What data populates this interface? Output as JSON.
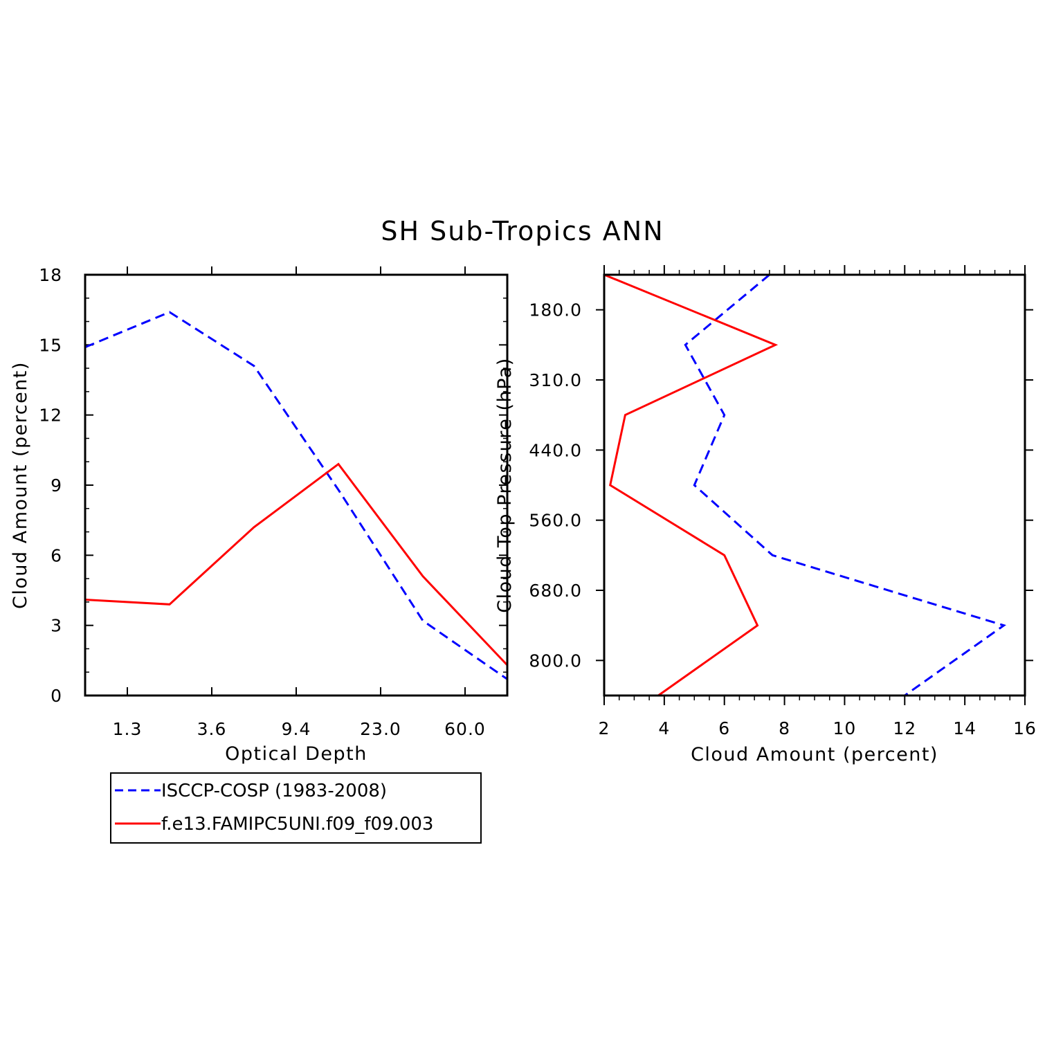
{
  "title": "SH Sub-Tropics ANN",
  "colors": {
    "obs": "#0000ff",
    "model": "#ff0000"
  },
  "legend": {
    "entries": [
      {
        "label": "ISCCP-COSP (1983-2008)",
        "color": "#0000ff",
        "dash": true
      },
      {
        "label": "f.e13.FAMIPC5UNI.f09_f09.003",
        "color": "#ff0000",
        "dash": false
      }
    ]
  },
  "chart_data": [
    {
      "type": "line",
      "xlabel": "Optical Depth",
      "ylabel": "Cloud Amount (percent)",
      "ylim": [
        0,
        18
      ],
      "yticks": [
        0,
        3,
        6,
        9,
        12,
        15,
        18
      ],
      "ytick_labels": [
        "0",
        "3",
        "6",
        "9",
        "12",
        "15",
        "18"
      ],
      "x_bin_index_range": [
        0,
        5
      ],
      "xtick_positions": [
        0.5,
        1.5,
        2.5,
        3.5,
        4.5
      ],
      "xtick_labels": [
        "1.3",
        "3.6",
        "9.4",
        "23.0",
        "60.0"
      ],
      "x": [
        0,
        1,
        2,
        3,
        4,
        5
      ],
      "series": [
        {
          "name": "ISCCP-COSP (1983-2008)",
          "values": [
            14.9,
            16.4,
            14.1,
            8.8,
            3.2,
            0.7
          ],
          "style": "dash"
        },
        {
          "name": "f.e13.FAMIPC5UNI.f09_f09.003",
          "values": [
            4.1,
            3.9,
            7.2,
            9.9,
            5.1,
            1.3
          ],
          "style": "solid"
        }
      ]
    },
    {
      "type": "line",
      "xlabel": "Cloud Amount (percent)",
      "ylabel": "Cloud Top Pressure (hPa)",
      "xlim": [
        2,
        16
      ],
      "xticks": [
        2,
        4,
        6,
        8,
        10,
        12,
        14,
        16
      ],
      "xtick_labels": [
        "2",
        "4",
        "6",
        "8",
        "10",
        "12",
        "14",
        "16"
      ],
      "y_bin_index_range": [
        0,
        6
      ],
      "ytick_positions": [
        0.5,
        1.5,
        2.5,
        3.5,
        4.5,
        5.5
      ],
      "ytick_labels": [
        "180.0",
        "310.0",
        "440.0",
        "560.0",
        "680.0",
        "800.0"
      ],
      "y": [
        0,
        1,
        2,
        3,
        4,
        5,
        6
      ],
      "series": [
        {
          "name": "ISCCP-COSP (1983-2008)",
          "values": [
            7.5,
            4.7,
            6.0,
            5.0,
            7.6,
            15.3,
            12.0
          ],
          "style": "dash"
        },
        {
          "name": "f.e13.FAMIPC5UNI.f09_f09.003",
          "values": [
            2.0,
            7.7,
            2.7,
            2.2,
            6.0,
            7.1,
            3.8
          ],
          "style": "solid"
        }
      ]
    }
  ]
}
